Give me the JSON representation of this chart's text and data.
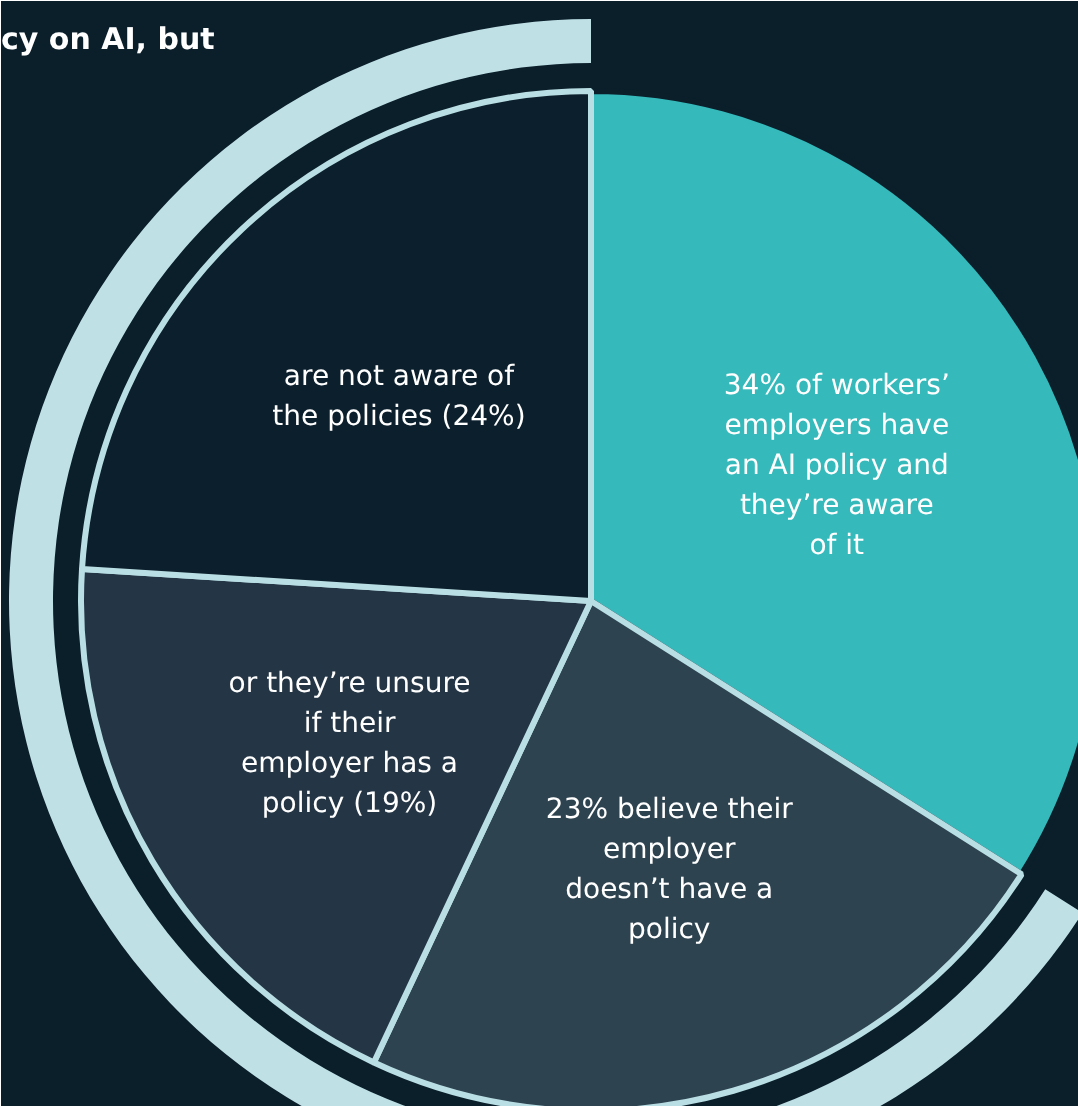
{
  "chart_data": {
    "type": "pie",
    "categories": [
      "34% of workers’\nemployers have\nan AI policy and\nthey’re aware\nof it",
      "23% believe their\nemployer\ndoesn’t have a\npolicy",
      "or they’re unsure\nif their\nemployer has a\npolicy (19%)",
      "are not aware of\nthe policies (24%)"
    ],
    "values": [
      34,
      23,
      19,
      24
    ],
    "colors": [
      "#35b9ba",
      "#2e4350",
      "#243545",
      "#0c1f2c"
    ],
    "annotations": [
      "cy on AI, but"
    ]
  }
}
